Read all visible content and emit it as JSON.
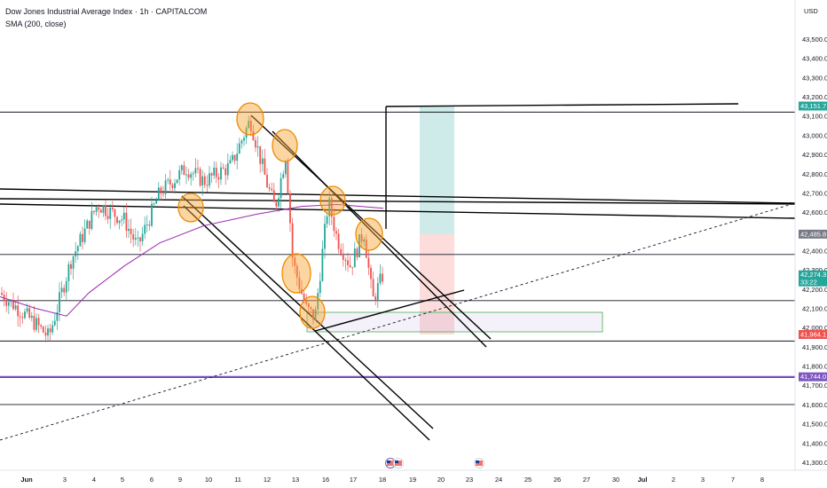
{
  "header": {
    "title": "Dow Jones Industrial Average Index · 1h · CAPITALCOM",
    "indicator": "SMA (200, close)",
    "currency": "USD"
  },
  "chart_data": {
    "type": "candlestick",
    "ylim": [
      41250,
      43600
    ],
    "y_ticks": [
      "43,500.0",
      "43,400.0",
      "43,300.0",
      "43,200.0",
      "43,100.0",
      "43,000.0",
      "42,900.0",
      "42,800.0",
      "42,700.0",
      "42,600.0",
      "42,500.0",
      "42,400.0",
      "42,300.0",
      "42,200.0",
      "42,100.0",
      "42,000.0",
      "41,900.0",
      "41,800.0",
      "41,700.0",
      "41,600.0",
      "41,500.0",
      "41,400.0",
      "41,300.0"
    ],
    "x_ticks": [
      "Jun",
      "3",
      "4",
      "5",
      "6",
      "9",
      "10",
      "11",
      "12",
      "13",
      "16",
      "17",
      "18",
      "19",
      "20",
      "23",
      "24",
      "25",
      "26",
      "27",
      "30",
      "Jul",
      "2",
      "3",
      "7",
      "8"
    ],
    "last_price": {
      "value": "42,274.3",
      "countdown": "33:22",
      "color": "#26a69a"
    },
    "price_labels": [
      {
        "value": "43,151.7",
        "color": "#26a69a"
      },
      {
        "value": "42,485.8",
        "color": "#787b86"
      },
      {
        "value": "41,964.1",
        "color": "#ef5350"
      },
      {
        "value": "41,744.0",
        "color": "#7e57c2"
      }
    ],
    "horizontal_levels": [
      43120,
      42380,
      42140,
      41930,
      41740,
      41600
    ],
    "sma_color": "#9c27b0",
    "up_color": "#26a69a",
    "down_color": "#ef5350",
    "annotation_color": "#f7a531",
    "long_position": {
      "entry": 42485.8,
      "target": 43151.7,
      "stop": 41964.1
    },
    "event_icons": [
      "flag-us-icon",
      "flag-us-icon"
    ]
  }
}
